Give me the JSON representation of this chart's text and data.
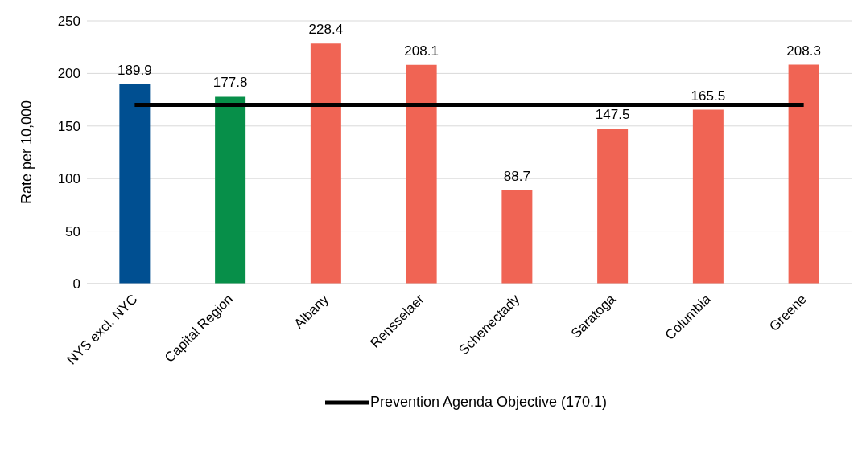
{
  "chart_data": {
    "type": "bar",
    "ylabel": "Rate per 10,000",
    "categories": [
      "NYS excl. NYC",
      "Capital Region",
      "Albany",
      "Rensselaer",
      "Schenectady",
      "Saratoga",
      "Columbia",
      "Greene"
    ],
    "values": [
      189.9,
      177.8,
      228.4,
      208.1,
      88.7,
      147.5,
      165.5,
      208.3
    ],
    "colors": [
      "#004f91",
      "#078f49",
      "#f06454",
      "#f06454",
      "#f06454",
      "#f06454",
      "#f06454",
      "#f06454"
    ],
    "ylim": [
      0,
      250
    ],
    "yticks": [
      0,
      50,
      100,
      150,
      200,
      250
    ],
    "grid": "y",
    "data_labels": true,
    "legend": "bottom",
    "ref_lines": [
      {
        "axis": "y",
        "value": 170.1,
        "label": "Prevention Agenda Objective (170.1)",
        "color": "#000000",
        "line_style": "solid"
      }
    ]
  }
}
